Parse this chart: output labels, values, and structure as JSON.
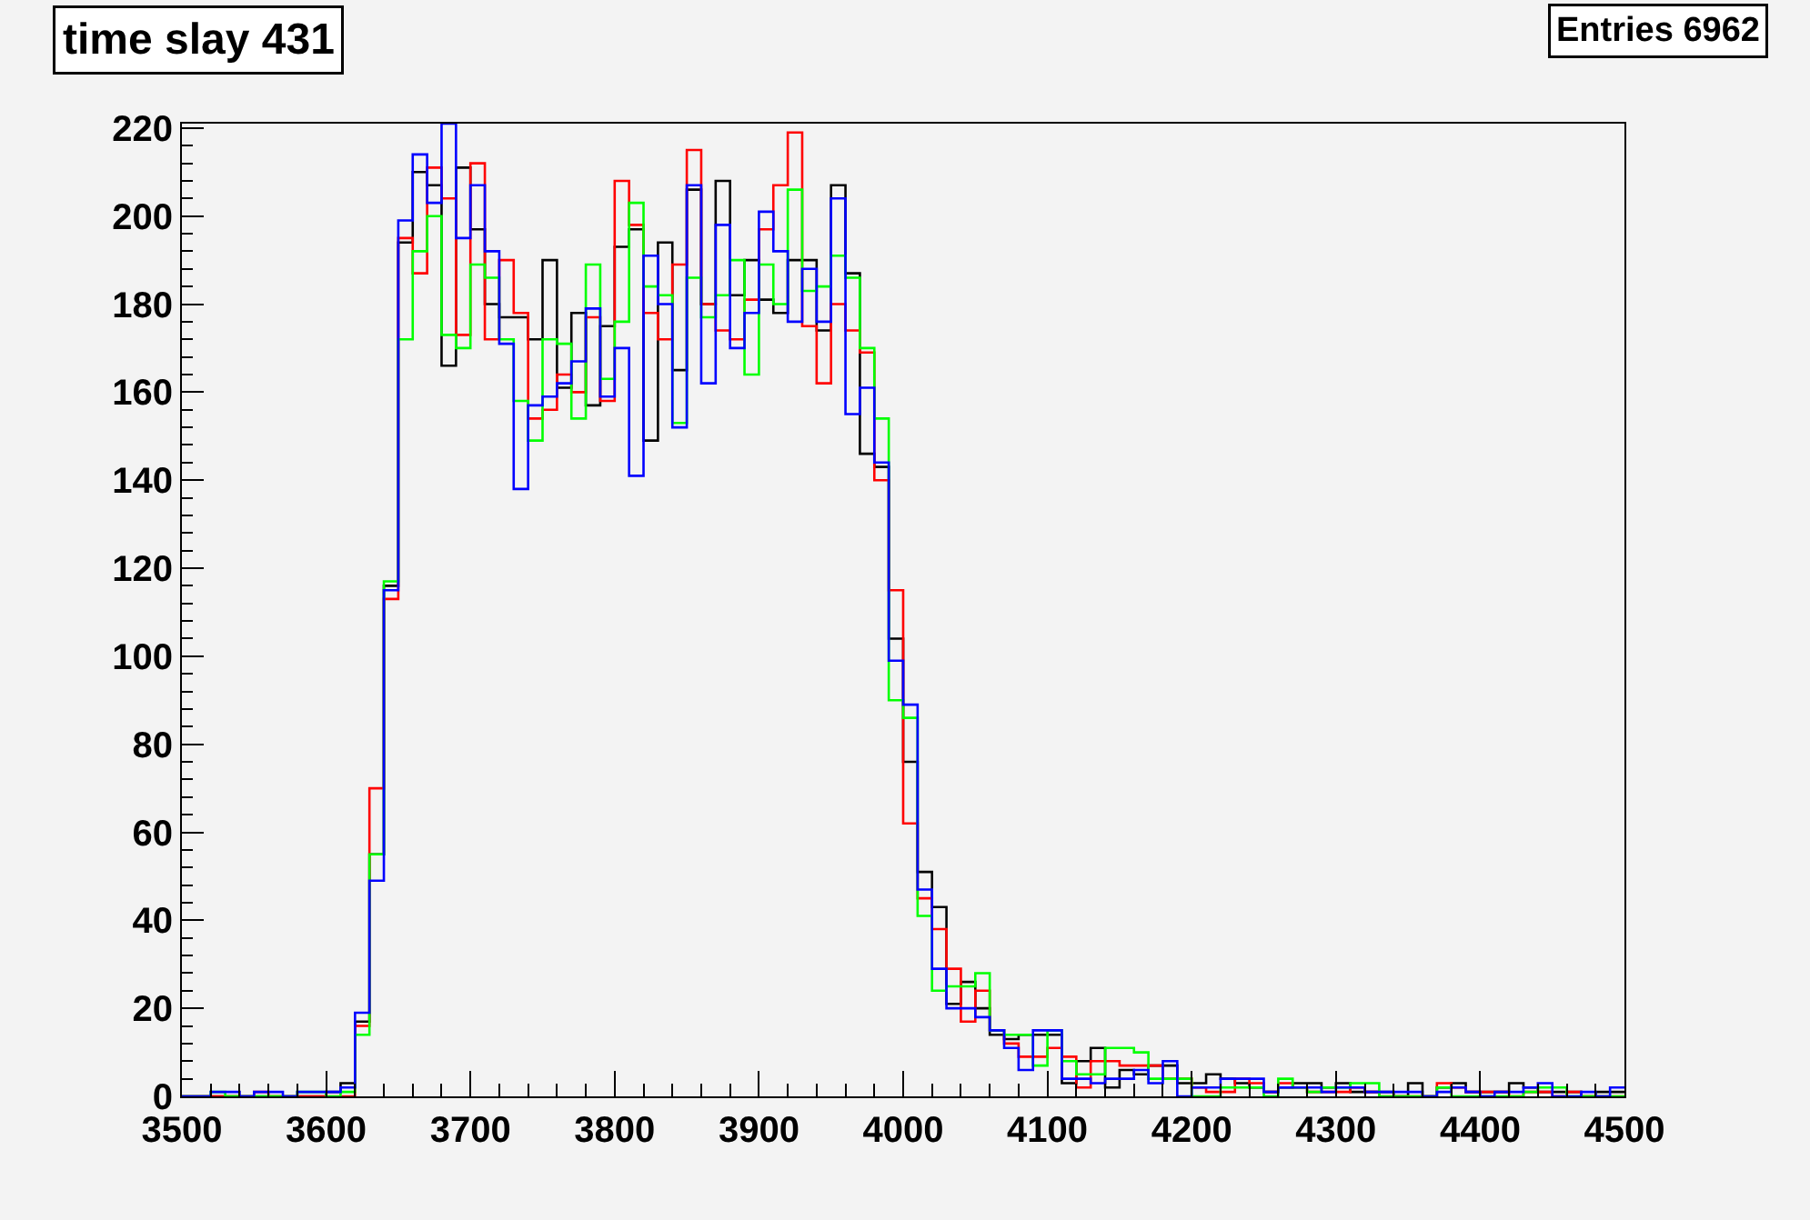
{
  "chart_data": {
    "type": "histogram",
    "title": "time slay 431",
    "annotations": [
      "Entries 6962"
    ],
    "bins": [
      3500,
      3510,
      3520,
      3530,
      3540,
      3550,
      3560,
      3570,
      3580,
      3590,
      3600,
      3610,
      3620,
      3630,
      3640,
      3650,
      3660,
      3670,
      3680,
      3690,
      3700,
      3710,
      3720,
      3730,
      3740,
      3750,
      3760,
      3770,
      3780,
      3790,
      3800,
      3810,
      3820,
      3830,
      3840,
      3850,
      3860,
      3870,
      3880,
      3890,
      3900,
      3910,
      3920,
      3930,
      3940,
      3950,
      3960,
      3970,
      3980,
      3990,
      4000,
      4010,
      4020,
      4030,
      4040,
      4050,
      4060,
      4070,
      4080,
      4090,
      4100,
      4110,
      4120,
      4130,
      4140,
      4150,
      4160,
      4170,
      4180,
      4190,
      4200,
      4210,
      4220,
      4230,
      4240,
      4250,
      4260,
      4270,
      4280,
      4290,
      4300,
      4310,
      4320,
      4330,
      4340,
      4350,
      4360,
      4370,
      4380,
      4390,
      4400,
      4410,
      4420,
      4430,
      4440,
      4450,
      4460,
      4470,
      4480,
      4490,
      4500
    ],
    "series": [
      {
        "color": "#000000",
        "values": [
          0,
          0,
          0,
          0,
          0,
          0,
          0,
          0,
          0,
          0,
          1,
          3,
          17,
          55,
          116,
          194,
          210,
          207,
          166,
          211,
          197,
          180,
          177,
          177,
          172,
          190,
          161,
          178,
          157,
          175,
          193,
          197,
          149,
          194,
          165,
          206,
          180,
          208,
          182,
          190,
          181,
          178,
          190,
          190,
          174,
          207,
          187,
          146,
          143,
          104,
          76,
          51,
          43,
          21,
          26,
          20,
          14,
          13,
          14,
          14,
          14,
          3,
          8,
          11,
          2,
          6,
          5,
          7,
          7,
          3,
          3,
          5,
          4,
          3,
          2,
          1,
          2,
          3,
          3,
          2,
          3,
          1,
          1,
          1,
          0,
          3,
          0,
          2,
          3,
          1,
          1,
          1,
          3,
          2,
          1,
          1,
          1,
          0,
          1,
          1
        ]
      },
      {
        "color": "#ff0000",
        "values": [
          0,
          0,
          0,
          0,
          0,
          1,
          0,
          0,
          0,
          0,
          0,
          0,
          16,
          70,
          113,
          195,
          187,
          211,
          204,
          173,
          212,
          172,
          190,
          178,
          154,
          156,
          164,
          160,
          177,
          158,
          208,
          198,
          178,
          172,
          189,
          215,
          180,
          174,
          172,
          181,
          197,
          207,
          219,
          175,
          162,
          180,
          174,
          169,
          140,
          115,
          62,
          45,
          38,
          29,
          17,
          24,
          15,
          12,
          9,
          9,
          11,
          9,
          2,
          8,
          8,
          7,
          7,
          7,
          4,
          4,
          2,
          1,
          1,
          4,
          3,
          1,
          3,
          2,
          1,
          1,
          1,
          2,
          1,
          0,
          0,
          0,
          0,
          3,
          2,
          1,
          1,
          1,
          0,
          1,
          1,
          0,
          1,
          0,
          0,
          0
        ]
      },
      {
        "color": "#00ff00",
        "values": [
          0,
          0,
          1,
          0,
          0,
          0,
          0,
          0,
          1,
          1,
          0,
          1,
          14,
          55,
          117,
          172,
          192,
          200,
          173,
          170,
          189,
          186,
          172,
          158,
          149,
          172,
          171,
          154,
          189,
          163,
          176,
          203,
          184,
          182,
          153,
          186,
          177,
          182,
          190,
          164,
          189,
          180,
          206,
          183,
          184,
          191,
          186,
          170,
          154,
          90,
          86,
          41,
          24,
          25,
          25,
          28,
          15,
          14,
          14,
          7,
          15,
          8,
          5,
          5,
          11,
          11,
          10,
          4,
          4,
          4,
          0,
          0,
          2,
          2,
          2,
          0,
          4,
          2,
          1,
          2,
          2,
          3,
          3,
          0,
          0,
          0,
          0,
          2,
          0,
          0,
          0,
          0,
          0,
          1,
          2,
          2,
          0,
          0,
          0,
          0
        ]
      },
      {
        "color": "#0000ff",
        "values": [
          0,
          0,
          1,
          1,
          0,
          1,
          1,
          0,
          1,
          1,
          1,
          2,
          19,
          49,
          115,
          199,
          214,
          203,
          221,
          195,
          207,
          192,
          171,
          138,
          157,
          159,
          162,
          167,
          179,
          159,
          170,
          141,
          191,
          180,
          152,
          207,
          162,
          198,
          170,
          178,
          201,
          192,
          176,
          188,
          176,
          204,
          155,
          161,
          144,
          99,
          89,
          47,
          29,
          20,
          20,
          18,
          15,
          11,
          6,
          15,
          15,
          4,
          4,
          3,
          4,
          4,
          6,
          3,
          8,
          0,
          2,
          2,
          4,
          4,
          4,
          1,
          2,
          2,
          2,
          1,
          2,
          2,
          1,
          1,
          1,
          1,
          0,
          1,
          2,
          1,
          0,
          1,
          1,
          2,
          3,
          0,
          0,
          1,
          0,
          2
        ]
      }
    ],
    "xlim": [
      3500,
      4500
    ],
    "xticks": [
      3500,
      3600,
      3700,
      3800,
      3900,
      4000,
      4100,
      4200,
      4300,
      4400,
      4500
    ],
    "ylim": [
      0,
      221
    ],
    "yticks": [
      0,
      20,
      40,
      60,
      80,
      100,
      120,
      140,
      160,
      180,
      200,
      220
    ],
    "tick_labels": true
  }
}
